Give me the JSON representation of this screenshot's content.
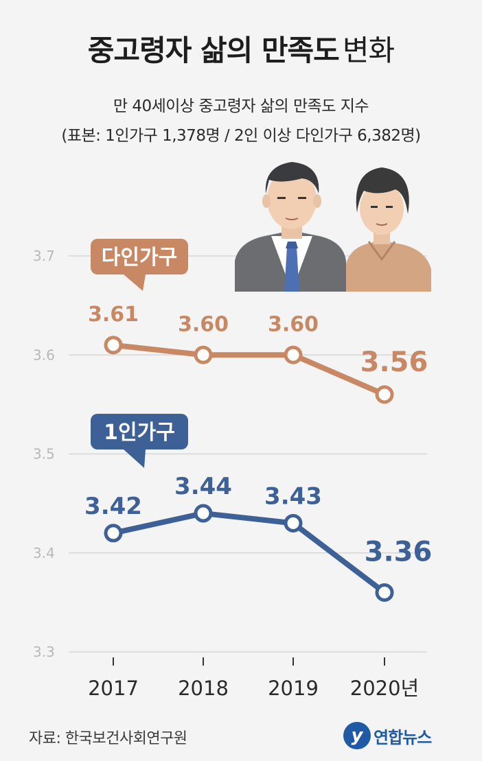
{
  "title": {
    "bold": "중고령자 삶의 만족도",
    "light": "변화"
  },
  "subtitle1": "만 40세이상 중고령자 삶의 만족도 지수",
  "subtitle2": "(표본: 1인가구 1,378명 / 2인 이상 다인가구 6,382명)",
  "source": "자료: 한국보건사회연구원",
  "logo": {
    "mark": "y",
    "text": "연합뉴스"
  },
  "colors": {
    "multi": "#c98864",
    "single": "#3d6097",
    "grid": "#d6d6d6",
    "tick": "#b8b8b8",
    "text": "#2a2a2a"
  },
  "chart_data": {
    "type": "line",
    "categories": [
      "2017",
      "2018",
      "2019",
      "2020년"
    ],
    "ylim": [
      3.3,
      3.7
    ],
    "yticks": [
      "3.3",
      "3.4",
      "3.5",
      "3.6",
      "3.7"
    ],
    "grid": true,
    "series": [
      {
        "name": "다인가구",
        "key": "multi",
        "values": [
          3.61,
          3.6,
          3.6,
          3.56
        ],
        "labels": [
          "3.61",
          "3.60",
          "3.60",
          "3.56"
        ]
      },
      {
        "name": "1인가구",
        "key": "single",
        "values": [
          3.42,
          3.44,
          3.43,
          3.36
        ],
        "labels": [
          "3.42",
          "3.44",
          "3.43",
          "3.36"
        ]
      }
    ]
  }
}
